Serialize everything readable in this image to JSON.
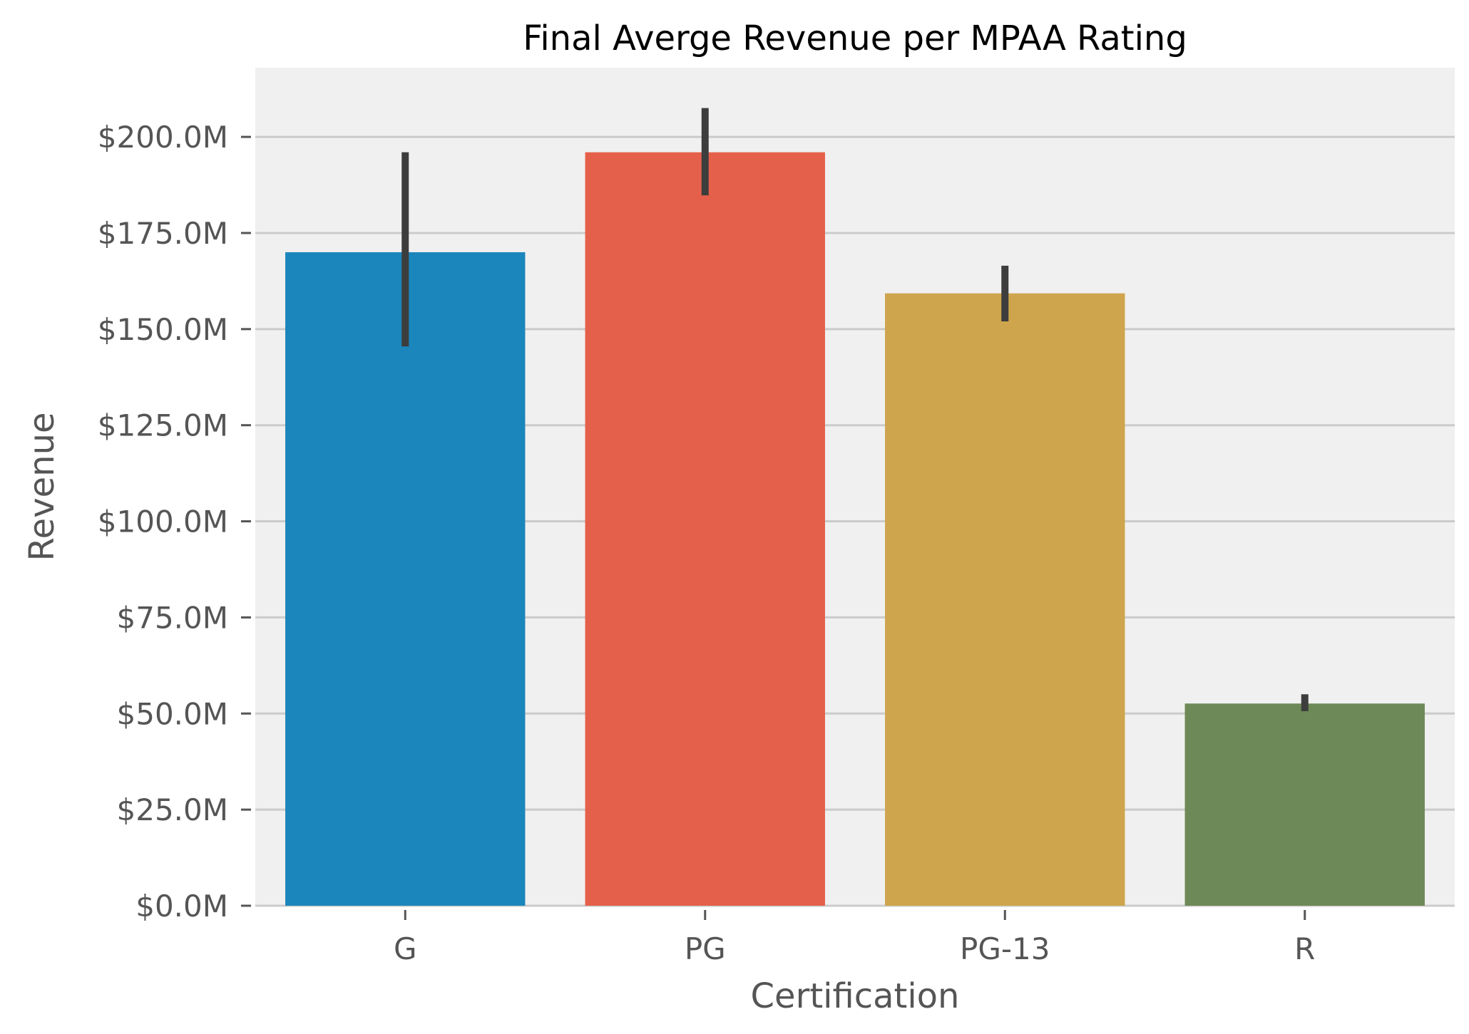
{
  "chart_data": {
    "type": "bar",
    "title": "Final Averge Revenue per MPAA Rating",
    "xlabel": "Certification",
    "ylabel": "Revenue",
    "categories": [
      "G",
      "PG",
      "PG-13",
      "R"
    ],
    "values": [
      170.0,
      196.0,
      159.3,
      52.6
    ],
    "error_bars": [
      {
        "low": 145.5,
        "high": 196.0
      },
      {
        "low": 184.8,
        "high": 207.5
      },
      {
        "low": 152.0,
        "high": 166.5
      },
      {
        "low": 50.6,
        "high": 55.0
      }
    ],
    "value_unit": "$M",
    "ylim": [
      0,
      218
    ],
    "yticks": [
      0,
      25,
      50,
      75,
      100,
      125,
      150,
      175,
      200
    ],
    "ytick_labels": [
      "$0.0M",
      "$25.0M",
      "$50.0M",
      "$75.0M",
      "$100.0M",
      "$125.0M",
      "$150.0M",
      "$175.0M",
      "$200.0M"
    ],
    "colors": [
      "#1b86bb",
      "#e5604a",
      "#cea54d",
      "#6d8957"
    ],
    "error_bar_color": "#3d3d3d",
    "background_color": "#f0f0f0",
    "grid_color": "#cbcbcb",
    "grid": true,
    "legend": false
  }
}
